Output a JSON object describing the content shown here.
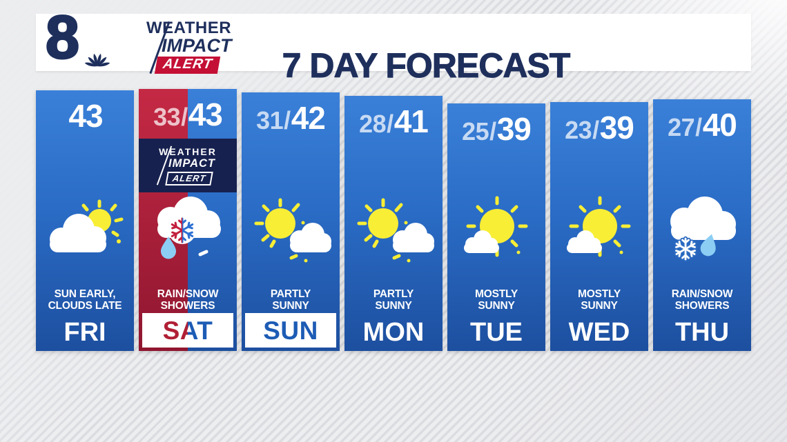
{
  "header": {
    "station": "8",
    "brand": {
      "weather": "WEATHER",
      "impact": "IMPACT",
      "alert": "ALERT"
    },
    "title": "7 DAY FORECAST"
  },
  "alert_badge": {
    "weather": "WEATHER",
    "impact": "IMPACT",
    "alert": "ALERT"
  },
  "cards": [
    {
      "day": "FRI",
      "low": "",
      "separator": "",
      "high": "43",
      "condition_line1": "SUN EARLY,",
      "condition_line2": "CLOUDS LATE",
      "icon": "sun-behind-cloud-icon",
      "theme": "blue",
      "weekend_banner": false,
      "alert": false
    },
    {
      "day": "SAT",
      "low": "33",
      "separator": "/",
      "high": "43",
      "condition_line1": "RAIN/SNOW",
      "condition_line2": "SHOWERS",
      "icon": "rain-snow-split-icon",
      "theme": "split-red-blue",
      "weekend_banner": true,
      "alert": true
    },
    {
      "day": "SUN",
      "low": "31",
      "separator": "/",
      "high": "42",
      "condition_line1": "PARTLY",
      "condition_line2": "SUNNY",
      "icon": "partly-sunny-icon",
      "theme": "blue",
      "weekend_banner": true,
      "alert": false
    },
    {
      "day": "MON",
      "low": "28",
      "separator": "/",
      "high": "41",
      "condition_line1": "PARTLY",
      "condition_line2": "SUNNY",
      "icon": "partly-sunny-icon",
      "theme": "blue",
      "weekend_banner": false,
      "alert": false
    },
    {
      "day": "TUE",
      "low": "25",
      "separator": "/",
      "high": "39",
      "condition_line1": "MOSTLY",
      "condition_line2": "SUNNY",
      "icon": "mostly-sunny-icon",
      "theme": "blue",
      "weekend_banner": false,
      "alert": false
    },
    {
      "day": "WED",
      "low": "23",
      "separator": "/",
      "high": "39",
      "condition_line1": "MOSTLY",
      "condition_line2": "SUNNY",
      "icon": "mostly-sunny-icon",
      "theme": "blue",
      "weekend_banner": false,
      "alert": false
    },
    {
      "day": "THU",
      "low": "27",
      "separator": "/",
      "high": "40",
      "condition_line1": "RAIN/SNOW",
      "condition_line2": "SHOWERS",
      "icon": "rain-snow-icon",
      "theme": "blue",
      "weekend_banner": false,
      "alert": false
    }
  ],
  "chart_data": {
    "type": "table",
    "title": "7 DAY FORECAST",
    "columns": [
      "day",
      "low_f",
      "high_f",
      "condition"
    ],
    "rows": [
      [
        "FRI",
        null,
        43,
        "SUN EARLY, CLOUDS LATE"
      ],
      [
        "SAT",
        33,
        43,
        "RAIN/SNOW SHOWERS"
      ],
      [
        "SUN",
        31,
        42,
        "PARTLY SUNNY"
      ],
      [
        "MON",
        28,
        41,
        "PARTLY SUNNY"
      ],
      [
        "TUE",
        25,
        39,
        "MOSTLY SUNNY"
      ],
      [
        "WED",
        23,
        39,
        "MOSTLY SUNNY"
      ],
      [
        "THU",
        27,
        40,
        "RAIN/SNOW SHOWERS"
      ]
    ]
  },
  "colors": {
    "navy": "#1e2f5c",
    "brand_red": "#c41035",
    "badge_navy": "#17214f",
    "card_blue_top": "#3a80d8",
    "card_blue_mid": "#2a6cc6",
    "card_blue_bottom": "#1d4f9f",
    "alert_red_top": "#c52944",
    "alert_red_bottom": "#8f1630",
    "low_temp_color": "rgba(255,255,255,0.72)",
    "banner_text_blue": "#1d5cb5",
    "banner_text_red": "#b01f35",
    "sun_yellow": "#f8ee35",
    "raindrop_blue": "#8ccdf4",
    "snowflake_red": "#c21f3d",
    "snowflake_blue": "#2b6fd3",
    "snowflake_halo": "#2e6cc2"
  }
}
